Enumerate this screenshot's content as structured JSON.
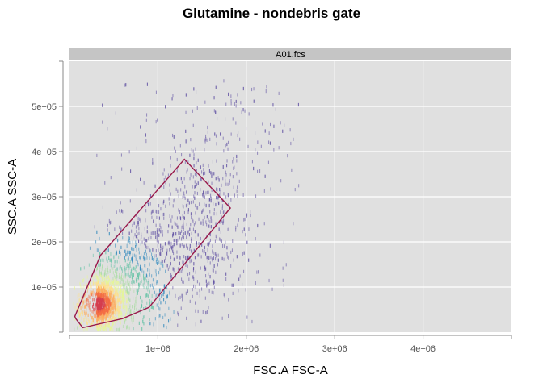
{
  "chart_data": {
    "type": "scatter",
    "title": "Glutamine - nondebris gate",
    "panel": "A01.fcs",
    "xlabel": "FSC.A FSC-A",
    "ylabel": "SSC.A SSC-A",
    "xlim": [
      0,
      5000000
    ],
    "ylim": [
      0,
      600000
    ],
    "x_ticks": [
      {
        "value": 1000000,
        "label": "1e+06"
      },
      {
        "value": 2000000,
        "label": "2e+06"
      },
      {
        "value": 3000000,
        "label": "3e+06"
      },
      {
        "value": 4000000,
        "label": "4e+06"
      }
    ],
    "y_ticks": [
      {
        "value": 100000,
        "label": "1e+05"
      },
      {
        "value": 200000,
        "label": "2e+05"
      },
      {
        "value": 300000,
        "label": "3e+05"
      },
      {
        "value": 400000,
        "label": "4e+05"
      },
      {
        "value": 500000,
        "label": "5e+05"
      }
    ],
    "grid": true,
    "density_colors": [
      "#5e4fa2",
      "#3288bd",
      "#66c2a5",
      "#abdda4",
      "#e6f598",
      "#fee08b",
      "#fdae61",
      "#f46d43",
      "#d53e4f"
    ],
    "gate": {
      "color": "#99184a",
      "vertices": [
        [
          70000,
          30000
        ],
        [
          150000,
          10000
        ],
        [
          600000,
          30000
        ],
        [
          900000,
          55000
        ],
        [
          1820000,
          275000
        ],
        [
          1300000,
          383000
        ],
        [
          350000,
          170000
        ],
        [
          60000,
          35000
        ]
      ]
    }
  }
}
